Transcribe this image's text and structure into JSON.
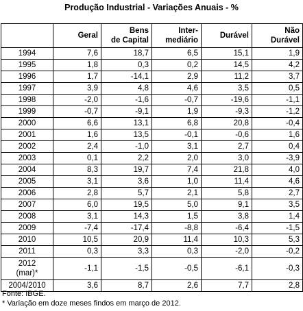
{
  "title": "Produção Industrial - Variações Anuais - %",
  "columns": [
    "",
    "Geral",
    "Bens de Capital",
    "Inter- mediário",
    "Durável",
    "Não Durável"
  ],
  "column_lines": [
    [
      ""
    ],
    [
      "Geral"
    ],
    [
      "Bens",
      "de Capital"
    ],
    [
      "Inter-",
      "mediário"
    ],
    [
      "Durável"
    ],
    [
      "Não",
      "Durável"
    ]
  ],
  "rows": [
    {
      "year": [
        "1994"
      ],
      "values": [
        "7,6",
        "18,7",
        "6,5",
        "15,1",
        "1,9"
      ]
    },
    {
      "year": [
        "1995"
      ],
      "values": [
        "1,8",
        "0,3",
        "0,2",
        "14,5",
        "4,2"
      ]
    },
    {
      "year": [
        "1996"
      ],
      "values": [
        "1,7",
        "-14,1",
        "2,9",
        "11,2",
        "3,7"
      ]
    },
    {
      "year": [
        "1997"
      ],
      "values": [
        "3,9",
        "4,8",
        "4,6",
        "3,5",
        "0,5"
      ]
    },
    {
      "year": [
        "1998"
      ],
      "values": [
        "-2,0",
        "-1,6",
        "-0,7",
        "-19,6",
        "-1,1"
      ]
    },
    {
      "year": [
        "1999"
      ],
      "values": [
        "-0,7",
        "-9,1",
        "1,9",
        "-9,3",
        "-1,2"
      ]
    },
    {
      "year": [
        "2000"
      ],
      "values": [
        "6,6",
        "13,1",
        "6,8",
        "20,8",
        "-0,4"
      ]
    },
    {
      "year": [
        "2001"
      ],
      "values": [
        "1,6",
        "13,5",
        "-0,1",
        "-0,6",
        "1,6"
      ]
    },
    {
      "year": [
        "2002"
      ],
      "values": [
        "2,4",
        "-1,0",
        "3,1",
        "2,7",
        "0,4"
      ]
    },
    {
      "year": [
        "2003"
      ],
      "values": [
        "0,1",
        "2,2",
        "2,0",
        "3,0",
        "-3,9"
      ]
    },
    {
      "year": [
        "2004"
      ],
      "values": [
        "8,3",
        "19,7",
        "7,4",
        "21,8",
        "4,0"
      ]
    },
    {
      "year": [
        "2005"
      ],
      "values": [
        "3,1",
        "3,6",
        "1,0",
        "11,4",
        "4,6"
      ]
    },
    {
      "year": [
        "2006"
      ],
      "values": [
        "2,8",
        "5,7",
        "2,1",
        "5,8",
        "2,7"
      ]
    },
    {
      "year": [
        "2007"
      ],
      "values": [
        "6,0",
        "19,5",
        "5,0",
        "9,1",
        "3,5"
      ]
    },
    {
      "year": [
        "2008"
      ],
      "values": [
        "3,1",
        "14,3",
        "1,5",
        "3,8",
        "1,4"
      ]
    },
    {
      "year": [
        "2009"
      ],
      "values": [
        "-7,4",
        "-17,4",
        "-8,8",
        "-6,4",
        "-1,5"
      ]
    },
    {
      "year": [
        "2010"
      ],
      "values": [
        "10,5",
        "20,9",
        "11,4",
        "10,3",
        "5,3"
      ]
    },
    {
      "year": [
        "2011"
      ],
      "values": [
        "0,3",
        "3,3",
        "0,3",
        "-2,0",
        "-0,2"
      ]
    },
    {
      "year": [
        "2012",
        "(mar)*"
      ],
      "values": [
        "-1,1",
        "-1,5",
        "-0,5",
        "-6,1",
        "-0,3"
      ]
    },
    {
      "year": [
        "2004/2010"
      ],
      "values": [
        "3,6",
        "8,7",
        "2,6",
        "7,7",
        "2,8"
      ]
    }
  ],
  "source": "Fonte: IBGE.",
  "footnote": "* Variação em doze meses findos em março de 2012."
}
